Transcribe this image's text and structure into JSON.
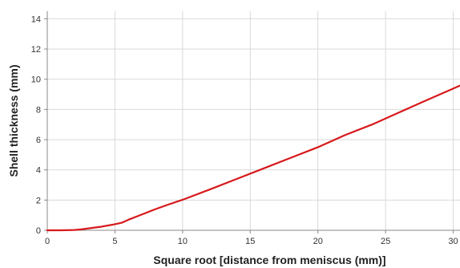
{
  "chart_data": {
    "type": "line",
    "title": "",
    "xlabel": "Square root  [distance from meniscus (mm)]",
    "ylabel": "Shell thickness (mm)",
    "xlim": [
      0,
      30.5
    ],
    "ylim": [
      0,
      14.5
    ],
    "x_ticks": [
      0,
      5,
      10,
      15,
      20,
      25,
      30
    ],
    "y_ticks": [
      0,
      2,
      4,
      6,
      8,
      10,
      12,
      14
    ],
    "grid": {
      "x": true,
      "y": true
    },
    "legend": "none",
    "series": [
      {
        "color": "#d7191c",
        "x": [
          0,
          1,
          2,
          2.5,
          3,
          3.5,
          4,
          4.5,
          5,
          5.5,
          6,
          7,
          8,
          9,
          10,
          12,
          14,
          16,
          18,
          20,
          22,
          24,
          26,
          28,
          30,
          30.5
        ],
        "y": [
          0,
          0,
          0.02,
          0.06,
          0.12,
          0.18,
          0.24,
          0.32,
          0.4,
          0.5,
          0.7,
          1.05,
          1.4,
          1.72,
          2.02,
          2.7,
          3.4,
          4.1,
          4.8,
          5.5,
          6.3,
          7.0,
          7.8,
          8.6,
          9.38,
          9.58
        ]
      }
    ]
  }
}
